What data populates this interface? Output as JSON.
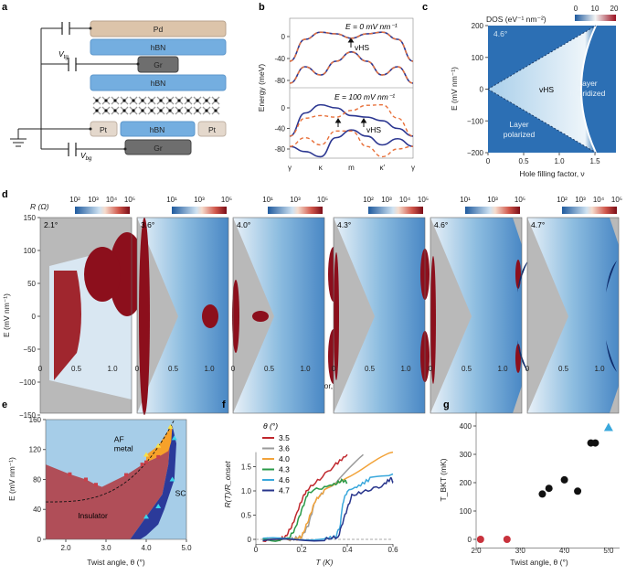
{
  "panel_labels": {
    "a": "a",
    "b": "b",
    "c": "c",
    "d": "d",
    "e": "e",
    "f": "f",
    "g": "g"
  },
  "device": {
    "layers": {
      "pd": "Pd",
      "hbn_top": "hBN",
      "gr_top": "Gr",
      "hbn_mid": "hBN",
      "pt_left": "Pt",
      "hbn_bottom": "hBN",
      "pt_right": "Pt",
      "gr_bottom": "Gr"
    },
    "v_tg": {
      "main": "V",
      "sub": "tg"
    },
    "v_bg": {
      "main": "V",
      "sub": "bg"
    },
    "colors": {
      "pd": "#dcc4aa",
      "hbn": "#74aee0",
      "gr": "#6e6e6e",
      "pt": "#e4d8cc"
    }
  },
  "chart_data": [
    {
      "id": "b",
      "type": "line",
      "ylabel": "Energy (meV)",
      "x_ticks": [
        "γ",
        "κ",
        "m",
        "κ′",
        "γ"
      ],
      "panels": [
        {
          "title": "E = 0 mV nm⁻¹",
          "annotation": "vHS",
          "y_ticks": [
            "0",
            "-40",
            "-80"
          ],
          "series": [
            {
              "style": "solid",
              "color": "#2c3791",
              "values": [
                -45,
                -5,
                8,
                5,
                -3,
                5,
                8,
                -5,
                -45
              ]
            },
            {
              "style": "solid",
              "color": "#2c3791",
              "values": [
                -85,
                -55,
                -70,
                -45,
                -28,
                -45,
                -70,
                -55,
                -85
              ]
            },
            {
              "style": "dashed",
              "color": "#e8703a",
              "values": [
                -45,
                -5,
                8,
                5,
                -3,
                5,
                8,
                -5,
                -45
              ]
            },
            {
              "style": "dashed",
              "color": "#e8703a",
              "values": [
                -85,
                -55,
                -70,
                -45,
                -28,
                -45,
                -70,
                -55,
                -85
              ]
            }
          ]
        },
        {
          "title": "E = 100 mV nm⁻¹",
          "annotation": "vHS",
          "y_ticks": [
            "0",
            "-40",
            "-80"
          ],
          "series": [
            {
              "style": "solid",
              "color": "#2c3791",
              "values": [
                -55,
                -10,
                6,
                0,
                -15,
                -18,
                -25,
                -40,
                -55
              ]
            },
            {
              "style": "solid",
              "color": "#2c3791",
              "values": [
                -75,
                -85,
                -95,
                -58,
                -43,
                -55,
                -72,
                -60,
                -75
              ]
            },
            {
              "style": "dashed",
              "color": "#e8703a",
              "values": [
                -55,
                -20,
                -15,
                -18,
                -5,
                5,
                6,
                -20,
                -55
              ]
            },
            {
              "style": "dashed",
              "color": "#e8703a",
              "values": [
                -75,
                -58,
                -72,
                -45,
                -45,
                -75,
                -95,
                -80,
                -75
              ]
            }
          ]
        }
      ]
    },
    {
      "id": "c",
      "type": "heatmap",
      "colorbar_title": "DOS (eV⁻¹ nm⁻²)",
      "colorbar_ticks": [
        "0",
        "10",
        "20"
      ],
      "colorbar_range": [
        0,
        20
      ],
      "xlabel": "Hole filling factor, ν",
      "ylabel": "E (mV nm⁻¹)",
      "xlim": [
        0,
        1.8
      ],
      "ylim": [
        -200,
        200
      ],
      "x_ticks": [
        "0",
        "0.5",
        "1.0",
        "1.5"
      ],
      "y_ticks": [
        "200",
        "100",
        "0",
        "−100",
        "−200"
      ],
      "angle": "4.6°",
      "annotations": {
        "vhs": "vHS",
        "hybridized_1": "Layer",
        "hybridized_2": "hybridized",
        "polarized_1": "Layer",
        "polarized_2": "polarized"
      }
    },
    {
      "id": "d",
      "type": "heatmap",
      "colorbar_title": "R (Ω)",
      "xlabel": "Hole filling factor, ν",
      "ylabel": "E (mV nm⁻¹)",
      "ylim": [
        -150,
        150
      ],
      "y_ticks": [
        "150",
        "100",
        "50",
        "0",
        "−50",
        "−100",
        "−150"
      ],
      "x_ticks": [
        "0",
        "0.5",
        "1.0"
      ],
      "panels": [
        {
          "angle": "2.1°",
          "colorbar_ticks": [
            "10²",
            "10³",
            "10⁴",
            "10⁵"
          ]
        },
        {
          "angle": "3.6°",
          "colorbar_ticks": [
            "10¹",
            "10³",
            "10⁵"
          ]
        },
        {
          "angle": "4.0°",
          "colorbar_ticks": [
            "10¹",
            "10³",
            "10⁵"
          ]
        },
        {
          "angle": "4.3°",
          "colorbar_ticks": [
            "10²",
            "10³",
            "10⁴",
            "10⁵"
          ]
        },
        {
          "angle": "4.6°",
          "colorbar_ticks": [
            "10¹",
            "10³",
            "10⁵"
          ]
        },
        {
          "angle": "4.7°",
          "colorbar_ticks": [
            "10²",
            "10³",
            "10⁴",
            "10⁵"
          ]
        }
      ]
    },
    {
      "id": "e",
      "type": "area",
      "xlabel": "Twist angle, θ (°)",
      "ylabel": "E (mV nm⁻¹)",
      "xlim": [
        1.5,
        5.0
      ],
      "ylim": [
        0,
        160
      ],
      "x_ticks": [
        "2.0",
        "3.0",
        "4.0",
        "5.0"
      ],
      "y_ticks": [
        "0",
        "40",
        "80",
        "120",
        "160"
      ],
      "regions": {
        "insulator": "Insulator",
        "af_metal_1": "AF",
        "af_metal_2": "metal",
        "sc": "SC"
      },
      "colors": {
        "background": "#a6cde8",
        "insulator": "#b04e58",
        "af_metal": "#f7a12a",
        "sc": "#2b3a9a"
      },
      "insulator_points": [
        [
          2.1,
          87
        ],
        [
          2.5,
          80
        ],
        [
          2.75,
          73
        ],
        [
          3.5,
          86
        ],
        [
          3.9,
          100
        ],
        [
          4.0,
          103
        ],
        [
          4.3,
          110
        ]
      ],
      "sc_points": [
        [
          4.0,
          30
        ],
        [
          4.3,
          44
        ],
        [
          4.65,
          80
        ],
        [
          4.7,
          135
        ]
      ],
      "af_points": [
        [
          4.0,
          113
        ],
        [
          4.3,
          125
        ],
        [
          4.6,
          150
        ]
      ]
    },
    {
      "id": "f",
      "type": "line",
      "xlabel": "T (K)",
      "ylabel": "R(T)/R_onset",
      "legend_title": "θ (°)",
      "legend": "top-left",
      "xlim": [
        0,
        0.6
      ],
      "ylim": [
        -0.1,
        1.8
      ],
      "x_ticks": [
        "0",
        "0.2",
        "0.4",
        "0.6"
      ],
      "y_ticks": [
        "0",
        "0.5",
        "1.0",
        "1.5"
      ],
      "series": [
        {
          "name": "3.5",
          "color": "#c0272d",
          "points": [
            [
              0.03,
              -0.02
            ],
            [
              0.1,
              0
            ],
            [
              0.13,
              0.05
            ],
            [
              0.16,
              0.3
            ],
            [
              0.2,
              0.8
            ],
            [
              0.22,
              1.0
            ],
            [
              0.28,
              1.25
            ],
            [
              0.35,
              1.55
            ],
            [
              0.4,
              1.75
            ]
          ]
        },
        {
          "name": "3.6",
          "color": "#9a9a9a",
          "points": [
            [
              0.03,
              0
            ],
            [
              0.15,
              0
            ],
            [
              0.2,
              0.05
            ],
            [
              0.23,
              0.3
            ],
            [
              0.26,
              0.8
            ],
            [
              0.3,
              1.0
            ],
            [
              0.38,
              1.3
            ],
            [
              0.47,
              1.75
            ]
          ]
        },
        {
          "name": "4.0",
          "color": "#f2a33a",
          "points": [
            [
              0.03,
              0
            ],
            [
              0.17,
              0
            ],
            [
              0.2,
              0.05
            ],
            [
              0.23,
              0.4
            ],
            [
              0.26,
              0.8
            ],
            [
              0.3,
              1.0
            ],
            [
              0.4,
              1.3
            ],
            [
              0.5,
              1.55
            ],
            [
              0.6,
              1.8
            ]
          ]
        },
        {
          "name": "4.3",
          "color": "#2a9a48",
          "points": [
            [
              0.03,
              -0.02
            ],
            [
              0.14,
              0
            ],
            [
              0.17,
              0.2
            ],
            [
              0.2,
              0.6
            ],
            [
              0.23,
              0.98
            ],
            [
              0.3,
              1.08
            ],
            [
              0.35,
              1.15
            ],
            [
              0.38,
              1.22
            ],
            [
              0.4,
              1.17
            ]
          ]
        },
        {
          "name": "4.6",
          "color": "#3aa8dc",
          "points": [
            [
              0.03,
              0
            ],
            [
              0.3,
              0.02
            ],
            [
              0.35,
              0.05
            ],
            [
              0.37,
              0.3
            ],
            [
              0.38,
              0.75
            ],
            [
              0.4,
              1.0
            ],
            [
              0.45,
              1.1
            ],
            [
              0.5,
              1.25
            ],
            [
              0.6,
              1.35
            ]
          ]
        },
        {
          "name": "4.7",
          "color": "#27348b",
          "points": [
            [
              0.03,
              -0.03
            ],
            [
              0.3,
              0
            ],
            [
              0.36,
              0.05
            ],
            [
              0.39,
              0.5
            ],
            [
              0.42,
              0.9
            ],
            [
              0.48,
              1.0
            ],
            [
              0.55,
              1.1
            ],
            [
              0.59,
              1.25
            ],
            [
              0.6,
              1.2
            ]
          ]
        }
      ]
    },
    {
      "id": "g",
      "type": "scatter",
      "xlabel": "Twist angle, θ (°)",
      "ylabel": "T_BKT (mK)",
      "xlim": [
        2.0,
        5.1
      ],
      "ylim": [
        -30,
        450
      ],
      "x_ticks": [
        "2.0",
        "3.0",
        "4.0",
        "5.0"
      ],
      "y_ticks": [
        "0",
        "100",
        "200",
        "300",
        "400"
      ],
      "series": [
        {
          "marker": "circle",
          "color": "#111111",
          "points": [
            [
              3.5,
              160
            ],
            [
              3.65,
              180
            ],
            [
              4.0,
              210
            ],
            [
              4.3,
              170
            ],
            [
              4.6,
              340
            ],
            [
              4.7,
              340
            ]
          ]
        },
        {
          "marker": "circle",
          "color": "#c8323c",
          "points": [
            [
              2.1,
              0
            ],
            [
              2.7,
              0
            ]
          ]
        },
        {
          "marker": "triangle",
          "color": "#3aa8dc",
          "points": [
            [
              5.0,
              395
            ]
          ]
        }
      ]
    }
  ]
}
